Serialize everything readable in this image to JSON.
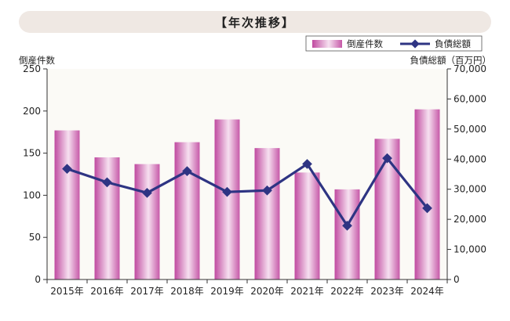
{
  "title": "【年次推移】",
  "chart_data": {
    "type": "bar+line",
    "categories": [
      "2015年",
      "2016年",
      "2017年",
      "2018年",
      "2019年",
      "2020年",
      "2021年",
      "2022年",
      "2023年",
      "2024年"
    ],
    "series": [
      {
        "name": "倒産件数",
        "type": "bar",
        "axis": "left",
        "values": [
          177,
          145,
          137,
          163,
          190,
          156,
          127,
          107,
          167,
          202
        ]
      },
      {
        "name": "負債総額",
        "type": "line",
        "axis": "right",
        "values": [
          36800,
          32300,
          28800,
          36000,
          29100,
          29600,
          38400,
          17900,
          40300,
          23700
        ]
      }
    ],
    "left_axis": {
      "label": "倒産件数",
      "range": [
        0,
        250
      ],
      "ticks": [
        0,
        50,
        100,
        150,
        200,
        250
      ],
      "tick_labels": [
        "0",
        "50",
        "100",
        "150",
        "200",
        "250"
      ]
    },
    "right_axis": {
      "label": "負債総額（百万円）",
      "range": [
        0,
        70000
      ],
      "ticks": [
        0,
        10000,
        20000,
        30000,
        40000,
        50000,
        60000,
        70000
      ],
      "tick_labels": [
        "0",
        "10,000",
        "20,000",
        "30,000",
        "40,000",
        "50,000",
        "60,000",
        "70,000"
      ]
    },
    "legend_placement": "top-right",
    "grid": false,
    "colors": {
      "bar_edge": "#c04aa0",
      "bar_mid": "#f6e0f0",
      "line": "#2e3483",
      "plot_bg": "#fbfaf6",
      "banner_bg": "#efe8e3"
    }
  }
}
